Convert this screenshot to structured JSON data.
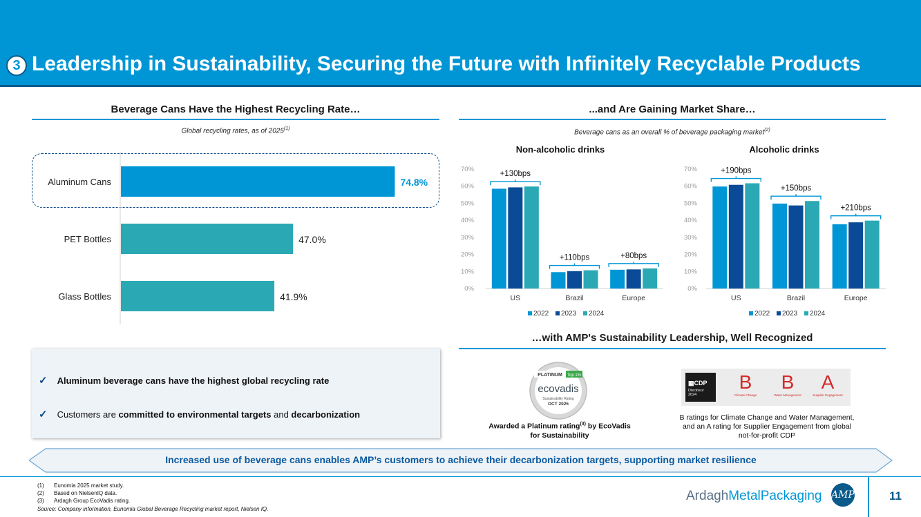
{
  "header": {
    "section_number": "3",
    "title": "Leadership in Sustainability, Securing the Future with Infinitely Recyclable Products"
  },
  "left_section": {
    "heading": "Beverage Cans Have the Highest Recycling Rate…",
    "subtitle": "Global recycling rates, as of 2025",
    "subtitle_ref": "(1)"
  },
  "right_section": {
    "heading": "...and Are Gaining Market Share…",
    "subtitle": "Beverage cans as an overall % of beverage packaging market",
    "subtitle_ref": "(2)"
  },
  "recognition_section": {
    "heading": "…with AMP's Sustainability Leadership, Well Recognized",
    "ecovadis": {
      "badge_top": "PLATINUM",
      "badge_tag": "Top 1%",
      "logo_text": "ecovadis",
      "rating_text": "Sustainability Rating",
      "date_text": "OCT 2025",
      "caption_a": "Awarded a Platinum rating",
      "caption_ref": "(3)",
      "caption_b": " by EcoVadis for Sustainability"
    },
    "cdp": {
      "brand": "CDP",
      "disclosure": "Disclosur",
      "disclosure_year": "2024",
      "grades": [
        {
          "grade": "B",
          "label": "Climate Change"
        },
        {
          "grade": "B",
          "label": "Water Management"
        },
        {
          "grade": "A",
          "label": "Supplier Engagement"
        }
      ],
      "caption": "B ratings for Climate Change and Water Management, and an A rating for Supplier Engagement from global not-for-profit CDP"
    }
  },
  "bullets": {
    "b1": "Aluminum beverage cans have the highest global recycling rate",
    "b2_pre": "Customers are ",
    "b2_bold1": "committed to environmental targets",
    "b2_mid": " and ",
    "b2_bold2": "decarbonization"
  },
  "banner": "Increased use of beverage cans enables AMP’s customers to achieve their decarbonization targets, supporting market resilience",
  "footer": {
    "notes": [
      {
        "num": "(1)",
        "text": "Eunomia 2025 market study."
      },
      {
        "num": "(2)",
        "text": "Based on NielsenIQ data."
      },
      {
        "num": "(3)",
        "text": "Ardagh Group EcoVadis rating."
      }
    ],
    "source": "Source: Company information, Eunomia Global Beverage Recycling market report, Nielsen IQ.",
    "brand_a": "Ardagh",
    "brand_b": "MetalPackaging",
    "monogram": "AMP",
    "page_number": "11"
  },
  "chart_data": [
    {
      "type": "bar",
      "orientation": "horizontal",
      "categories": [
        "Aluminum Cans",
        "PET Bottles",
        "Glass Bottles"
      ],
      "values": [
        74.8,
        47.0,
        41.9
      ],
      "value_labels": [
        "74.8%",
        "47.0%",
        "41.9%"
      ],
      "title": "Global recycling rates, as of 2025",
      "colors": [
        "#0096d6",
        "#2aa9b5",
        "#2aa9b5"
      ],
      "xlim": [
        0,
        100
      ],
      "highlight": "Aluminum Cans"
    },
    {
      "type": "bar",
      "title": "Non-alcoholic drinks",
      "categories": [
        "US",
        "Brazil",
        "Europe"
      ],
      "series": [
        {
          "name": "2022",
          "color": "#0096d6",
          "values": [
            58.5,
            9.6,
            11.0
          ]
        },
        {
          "name": "2023",
          "color": "#0a4a96",
          "values": [
            59.3,
            10.2,
            11.2
          ]
        },
        {
          "name": "2024",
          "color": "#2aa9b5",
          "values": [
            59.8,
            10.7,
            11.8
          ]
        }
      ],
      "annotations": [
        "+130bps",
        "+110bps",
        "+80bps"
      ],
      "yticks": [
        "0%",
        "10%",
        "20%",
        "30%",
        "40%",
        "50%",
        "60%",
        "70%"
      ],
      "ylim": [
        0,
        70
      ],
      "legend": "bottom"
    },
    {
      "type": "bar",
      "title": "Alcoholic drinks",
      "categories": [
        "US",
        "Brazil",
        "Europe"
      ],
      "series": [
        {
          "name": "2022",
          "color": "#0096d6",
          "values": [
            59.8,
            49.8,
            37.7
          ]
        },
        {
          "name": "2023",
          "color": "#0a4a96",
          "values": [
            60.8,
            48.7,
            38.8
          ]
        },
        {
          "name": "2024",
          "color": "#2aa9b5",
          "values": [
            61.7,
            51.3,
            39.8
          ]
        }
      ],
      "annotations": [
        "+190bps",
        "+150bps",
        "+210bps"
      ],
      "yticks": [
        "0%",
        "10%",
        "20%",
        "30%",
        "40%",
        "50%",
        "60%",
        "70%"
      ],
      "ylim": [
        0,
        70
      ],
      "legend": "bottom"
    }
  ]
}
